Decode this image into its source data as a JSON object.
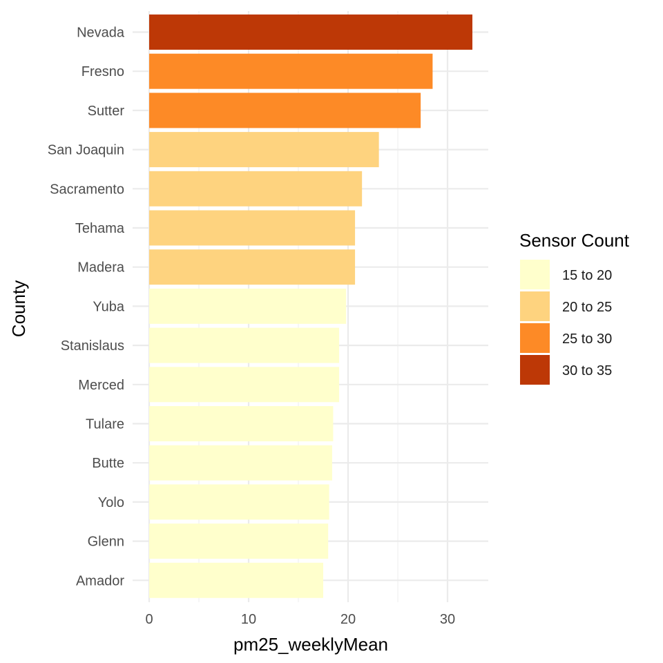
{
  "chart_data": {
    "type": "bar",
    "orientation": "horizontal",
    "xlabel": "pm25_weeklyMean",
    "ylabel": "County",
    "xlim": [
      0,
      34
    ],
    "x_ticks": [
      0,
      10,
      20,
      30
    ],
    "grid": true,
    "categories": [
      "Nevada",
      "Fresno",
      "Sutter",
      "San Joaquin",
      "Sacramento",
      "Tehama",
      "Madera",
      "Yuba",
      "Stanislaus",
      "Merced",
      "Tulare",
      "Butte",
      "Yolo",
      "Glenn",
      "Amador"
    ],
    "values": [
      32.5,
      28.5,
      27.3,
      23.1,
      21.4,
      20.7,
      20.7,
      19.8,
      19.1,
      19.1,
      18.5,
      18.4,
      18.1,
      18.0,
      17.5
    ],
    "groups": [
      "30 to 35",
      "25 to 30",
      "25 to 30",
      "20 to 25",
      "20 to 25",
      "20 to 25",
      "20 to 25",
      "15 to 20",
      "15 to 20",
      "15 to 20",
      "15 to 20",
      "15 to 20",
      "15 to 20",
      "15 to 20",
      "15 to 20"
    ],
    "legend": {
      "title": "Sensor Count",
      "position": "right",
      "entries": [
        {
          "label": "15 to 20",
          "color": "#FFFFCC"
        },
        {
          "label": "20 to 25",
          "color": "#FED37F"
        },
        {
          "label": "25 to 30",
          "color": "#FD8A26"
        },
        {
          "label": "30 to 35",
          "color": "#BD3806"
        }
      ]
    }
  }
}
